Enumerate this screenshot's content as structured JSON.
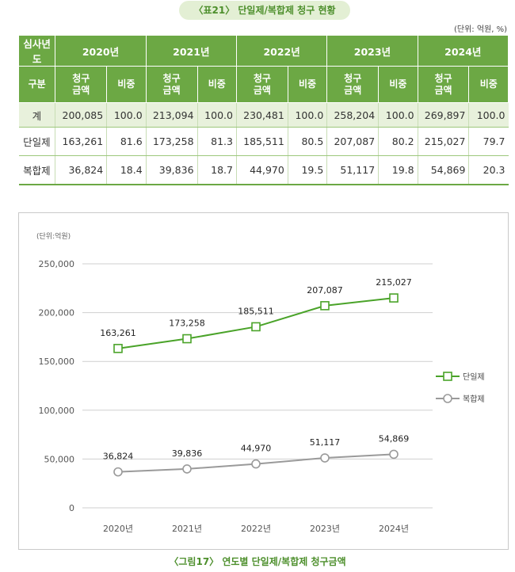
{
  "table_title": "〈표21〉 단일제/복합제 청구 현황",
  "unit_label": "(단위: 억원, %)",
  "table": {
    "corner_top": "심사년도",
    "corner_bottom": "구분",
    "years": [
      "2020년",
      "2021년",
      "2022년",
      "2023년",
      "2024년"
    ],
    "sub_amount": "청구 금액",
    "sub_ratio": "비중",
    "rows": [
      {
        "label": "계",
        "cells": [
          "200,085",
          "100.0",
          "213,094",
          "100.0",
          "230,481",
          "100.0",
          "258,204",
          "100.0",
          "269,897",
          "100.0"
        ]
      },
      {
        "label": "단일제",
        "cells": [
          "163,261",
          "81.6",
          "173,258",
          "81.3",
          "185,511",
          "80.5",
          "207,087",
          "80.2",
          "215,027",
          "79.7"
        ]
      },
      {
        "label": "복합제",
        "cells": [
          "36,824",
          "18.4",
          "39,836",
          "18.7",
          "44,970",
          "19.5",
          "51,117",
          "19.8",
          "54,869",
          "20.3"
        ]
      }
    ]
  },
  "chart_data": {
    "type": "line",
    "title": "〈그림17〉 연도별 단일제/복합제 청구금액",
    "unit": "(단위:억원)",
    "x": [
      "2020년",
      "2021년",
      "2022년",
      "2023년",
      "2024년"
    ],
    "ylim": [
      0,
      250000
    ],
    "yticks": [
      "0",
      "50,000",
      "100,000",
      "150,000",
      "200,000",
      "250,000"
    ],
    "grid": true,
    "legend_position": "right",
    "series": [
      {
        "name": "단일제",
        "color": "#4aa329",
        "marker": "square",
        "values": [
          163261,
          173258,
          185511,
          207087,
          215027
        ],
        "labels": [
          "163,261",
          "173,258",
          "185,511",
          "207,087",
          "215,027"
        ]
      },
      {
        "name": "복합제",
        "color": "#9a9a9a",
        "marker": "circle",
        "values": [
          36824,
          39836,
          44970,
          51117,
          54869
        ],
        "labels": [
          "36,824",
          "39,836",
          "44,970",
          "51,117",
          "54,869"
        ]
      }
    ]
  }
}
